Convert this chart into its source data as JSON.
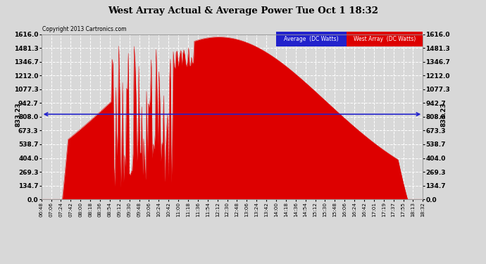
{
  "title": "West Array Actual & Average Power Tue Oct 1 18:32",
  "copyright": "Copyright 2013 Cartronics.com",
  "average_label": "833.23",
  "average_value": 833.23,
  "yticks": [
    0.0,
    134.7,
    269.3,
    404.0,
    538.7,
    673.3,
    808.0,
    942.7,
    1077.3,
    1212.0,
    1346.7,
    1481.3,
    1616.0
  ],
  "ymax": 1616.0,
  "ymin": 0.0,
  "background_color": "#d8d8d8",
  "plot_bg_color": "#d8d8d8",
  "grid_color": "#ffffff",
  "fill_color": "#dd0000",
  "average_line_color": "#2222cc",
  "legend_blue": "#2222cc",
  "legend_red": "#dd0000",
  "legend_label_avg": "Average  (DC Watts)",
  "legend_label_west": "West Array  (DC Watts)",
  "xtick_labels": [
    "06:48",
    "07:06",
    "07:24",
    "07:42",
    "08:00",
    "08:18",
    "08:36",
    "08:54",
    "09:12",
    "09:30",
    "09:48",
    "10:06",
    "10:24",
    "10:42",
    "11:00",
    "11:18",
    "11:36",
    "11:54",
    "12:12",
    "12:30",
    "12:48",
    "13:06",
    "13:24",
    "13:42",
    "14:00",
    "14:18",
    "14:36",
    "14:54",
    "15:12",
    "15:30",
    "15:48",
    "16:06",
    "16:24",
    "16:42",
    "17:01",
    "17:19",
    "17:37",
    "17:55",
    "18:13",
    "18:32"
  ]
}
